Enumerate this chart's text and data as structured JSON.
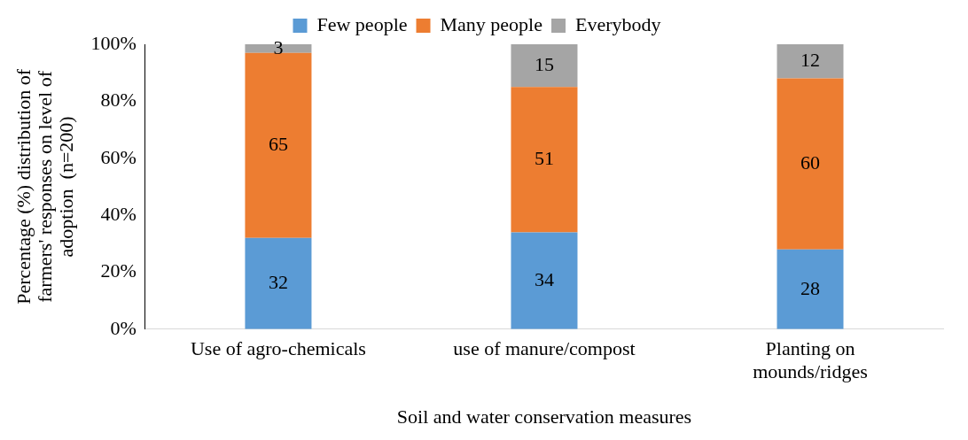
{
  "chart_data": {
    "type": "bar",
    "stacked": true,
    "xlabel": "Soil and water conservation measures",
    "ylabel": "Percentage (%) distribution of farmers' responses on level of adoption  (n=200)",
    "categories": [
      "Use of agro-chemicals",
      "use of manure/compost",
      "Planting on mounds/ridges"
    ],
    "series": [
      {
        "name": "Few people",
        "color": "#5b9bd5",
        "values": [
          32,
          34,
          28
        ]
      },
      {
        "name": "Many people",
        "color": "#ed7d31",
        "values": [
          65,
          51,
          60
        ]
      },
      {
        "name": "Everybody",
        "color": "#a5a5a5",
        "values": [
          3,
          15,
          12
        ]
      }
    ],
    "ylim": [
      0,
      100
    ],
    "yticks": [
      {
        "value": 0,
        "label": "0%"
      },
      {
        "value": 20,
        "label": "20%"
      },
      {
        "value": 40,
        "label": "40%"
      },
      {
        "value": 60,
        "label": "60%"
      },
      {
        "value": 80,
        "label": "80%"
      },
      {
        "value": 100,
        "label": "100%"
      }
    ],
    "grid": false,
    "legend": "top",
    "data_labels": true
  }
}
